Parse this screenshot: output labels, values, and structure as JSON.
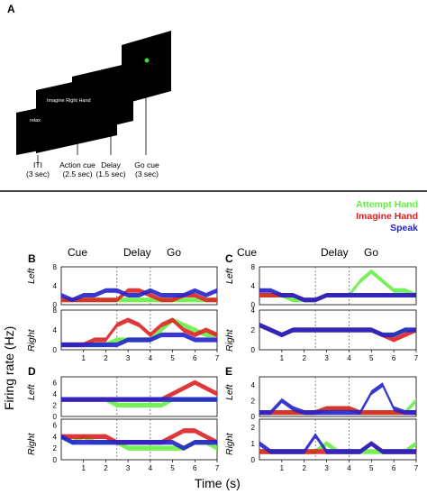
{
  "panel_a": {
    "letter": "A",
    "screen_texts": {
      "relax": "relax",
      "action": "Imagine Right Hand"
    },
    "captions": [
      {
        "line1": "ITI",
        "line2": "(3 sec)"
      },
      {
        "line1": "Action cue",
        "line2": "(2.5 sec)"
      },
      {
        "line1": "Delay",
        "line2": "(1.5 sec)"
      },
      {
        "line1": "Go cue",
        "line2": "(3 sec)"
      }
    ],
    "cue_color": "#33dd33"
  },
  "legend": [
    {
      "label": "Attempt Hand",
      "color": "#66ee44"
    },
    {
      "label": "Imagine Hand",
      "color": "#dd2222"
    },
    {
      "label": "Speak",
      "color": "#2222cc"
    }
  ],
  "phases": {
    "cue": "Cue",
    "delay": "Delay",
    "go": "Go"
  },
  "row_labels": {
    "left": "Left",
    "right": "Right"
  },
  "axis": {
    "ylabel": "Firing rate (Hz)",
    "xlabel": "Time (s)",
    "x_ticks": [
      "1",
      "2",
      "3",
      "4",
      "5",
      "6",
      "7"
    ]
  },
  "panels": [
    {
      "letter": "B",
      "left_ticks": [
        "0",
        "4",
        "8"
      ],
      "right_ticks": [
        "0",
        "4",
        "8"
      ]
    },
    {
      "letter": "C",
      "left_ticks": [
        "0",
        "4",
        "8"
      ],
      "right_ticks": [
        "0",
        "2",
        "4"
      ]
    },
    {
      "letter": "D",
      "left_ticks": [
        "0",
        "2",
        "4",
        "6"
      ],
      "right_ticks": [
        "0",
        "2",
        "4",
        "6"
      ]
    },
    {
      "letter": "E",
      "left_ticks": [
        "0",
        "2",
        "4"
      ],
      "right_ticks": [
        "0",
        "1",
        "2"
      ]
    }
  ],
  "chart_data": [
    {
      "type": "area",
      "panel": "B",
      "row": "Left",
      "x": [
        0,
        0.5,
        1,
        1.5,
        2,
        2.5,
        3,
        3.5,
        4,
        4.5,
        5,
        5.5,
        6,
        6.5,
        7
      ],
      "ylim": [
        0,
        8
      ],
      "series": [
        {
          "name": "Attempt Hand",
          "values": [
            1,
            1,
            1,
            1,
            1,
            1,
            1,
            1,
            1,
            1,
            1,
            1,
            1,
            1,
            1
          ]
        },
        {
          "name": "Imagine Hand",
          "values": [
            1,
            1,
            1,
            1,
            1,
            1,
            3,
            3,
            2,
            1,
            1,
            2,
            2,
            1,
            1
          ]
        },
        {
          "name": "Speak",
          "values": [
            2,
            1,
            2,
            2,
            3,
            3,
            2,
            2,
            3,
            2,
            2,
            2,
            3,
            2,
            3
          ]
        }
      ]
    },
    {
      "type": "area",
      "panel": "B",
      "row": "Right",
      "x": [
        0,
        0.5,
        1,
        1.5,
        2,
        2.5,
        3,
        3.5,
        4,
        4.5,
        5,
        5.5,
        6,
        6.5,
        7
      ],
      "ylim": [
        0,
        8
      ],
      "series": [
        {
          "name": "Attempt Hand",
          "values": [
            1,
            1,
            1,
            1,
            1,
            2,
            2,
            2,
            2,
            4,
            6,
            5,
            4,
            3,
            3
          ]
        },
        {
          "name": "Imagine Hand",
          "values": [
            1,
            1,
            1,
            2,
            2,
            5,
            6,
            5,
            3,
            5,
            6,
            4,
            3,
            4,
            3
          ]
        },
        {
          "name": "Speak",
          "values": [
            1,
            1,
            1,
            1,
            1,
            1,
            2,
            2,
            2,
            3,
            3,
            3,
            2,
            2,
            2
          ]
        }
      ]
    },
    {
      "type": "area",
      "panel": "C",
      "row": "Left",
      "x": [
        0,
        0.5,
        1,
        1.5,
        2,
        2.5,
        3,
        3.5,
        4,
        4.5,
        5,
        5.5,
        6,
        6.5,
        7
      ],
      "ylim": [
        0,
        8
      ],
      "series": [
        {
          "name": "Attempt Hand",
          "values": [
            2,
            2,
            2,
            1,
            1,
            1,
            2,
            2,
            2,
            5,
            7,
            5,
            3,
            3,
            2
          ]
        },
        {
          "name": "Imagine Hand",
          "values": [
            2,
            2,
            2,
            2,
            1,
            1,
            2,
            2,
            2,
            2,
            2,
            2,
            2,
            2,
            2
          ]
        },
        {
          "name": "Speak",
          "values": [
            3,
            3,
            2,
            2,
            1,
            1,
            2,
            2,
            2,
            2,
            2,
            2,
            2,
            2,
            2
          ]
        }
      ]
    },
    {
      "type": "area",
      "panel": "C",
      "row": "Right",
      "x": [
        0,
        0.5,
        1,
        1.5,
        2,
        2.5,
        3,
        3.5,
        4,
        4.5,
        5,
        5.5,
        6,
        6.5,
        7
      ],
      "ylim": [
        0,
        4
      ],
      "series": [
        {
          "name": "Attempt Hand",
          "values": [
            2.5,
            2,
            1.5,
            2,
            2,
            2,
            2,
            2,
            2,
            2,
            2,
            1.5,
            1.5,
            2,
            2
          ]
        },
        {
          "name": "Imagine Hand",
          "values": [
            2.5,
            2,
            1.5,
            2,
            2,
            2,
            2,
            2,
            2,
            2,
            2,
            1.5,
            1,
            1.5,
            2
          ]
        },
        {
          "name": "Speak",
          "values": [
            2.5,
            2,
            1.5,
            2,
            2,
            2,
            2,
            2,
            2,
            2,
            2,
            1.5,
            1.5,
            2,
            2
          ]
        }
      ]
    },
    {
      "type": "area",
      "panel": "D",
      "row": "Left",
      "x": [
        0,
        0.5,
        1,
        1.5,
        2,
        2.5,
        3,
        3.5,
        4,
        4.5,
        5,
        5.5,
        6,
        6.5,
        7
      ],
      "ylim": [
        0,
        7
      ],
      "series": [
        {
          "name": "Attempt Hand",
          "values": [
            3,
            3,
            3,
            3,
            3,
            2,
            2,
            2,
            2,
            2,
            3,
            3,
            3,
            3,
            3
          ]
        },
        {
          "name": "Imagine Hand",
          "values": [
            3,
            3,
            3,
            3,
            3,
            3,
            3,
            3,
            3,
            3,
            4,
            5,
            6,
            5,
            4
          ]
        },
        {
          "name": "Speak",
          "values": [
            3,
            3,
            3,
            3,
            3,
            3,
            3,
            3,
            3,
            3,
            3,
            3,
            3,
            3,
            3
          ]
        }
      ]
    },
    {
      "type": "area",
      "panel": "D",
      "row": "Right",
      "x": [
        0,
        0.5,
        1,
        1.5,
        2,
        2.5,
        3,
        3.5,
        4,
        4.5,
        5,
        5.5,
        6,
        6.5,
        7
      ],
      "ylim": [
        0,
        7
      ],
      "series": [
        {
          "name": "Attempt Hand",
          "values": [
            4,
            3,
            4,
            3,
            3,
            3,
            2,
            2,
            2,
            2,
            2,
            2,
            3,
            3,
            2
          ]
        },
        {
          "name": "Imagine Hand",
          "values": [
            4,
            4,
            4,
            4,
            4,
            3,
            3,
            3,
            3,
            3,
            4,
            5,
            5,
            4,
            3
          ]
        },
        {
          "name": "Speak",
          "values": [
            4,
            3,
            3,
            3,
            3,
            3,
            3,
            3,
            3,
            3,
            3,
            2,
            3,
            3,
            3
          ]
        }
      ]
    },
    {
      "type": "area",
      "panel": "E",
      "row": "Left",
      "x": [
        0,
        0.5,
        1,
        1.5,
        2,
        2.5,
        3,
        3.5,
        4,
        4.5,
        5,
        5.5,
        6,
        6.5,
        7
      ],
      "ylim": [
        0,
        5
      ],
      "series": [
        {
          "name": "Attempt Hand",
          "values": [
            0.5,
            0.5,
            0.5,
            0.5,
            0.5,
            0.5,
            1,
            1,
            1,
            0.5,
            0.5,
            0.5,
            0.5,
            0.5,
            2
          ]
        },
        {
          "name": "Imagine Hand",
          "values": [
            0.5,
            0.5,
            0.5,
            0.5,
            0.5,
            0.5,
            1,
            1,
            1,
            0.5,
            0.5,
            0.5,
            0.5,
            0.5,
            0.5
          ]
        },
        {
          "name": "Speak",
          "values": [
            0.5,
            0.5,
            2,
            1,
            0.5,
            0.5,
            0.5,
            0.5,
            0.5,
            0.5,
            3,
            4,
            1,
            0.5,
            0.5
          ]
        }
      ]
    },
    {
      "type": "area",
      "panel": "E",
      "row": "Right",
      "x": [
        0,
        0.5,
        1,
        1.5,
        2,
        2.5,
        3,
        3.5,
        4,
        4.5,
        5,
        5.5,
        6,
        6.5,
        7
      ],
      "ylim": [
        0,
        2.5
      ],
      "series": [
        {
          "name": "Attempt Hand",
          "values": [
            0.5,
            0.5,
            0.5,
            0.5,
            0.5,
            0.5,
            1,
            0.5,
            0.5,
            0.5,
            0.5,
            0.5,
            0.5,
            0.5,
            1
          ]
        },
        {
          "name": "Imagine Hand",
          "values": [
            0.5,
            0.5,
            0.5,
            0.5,
            0.5,
            0.5,
            0.5,
            0.5,
            0.5,
            0.5,
            1,
            0.5,
            0.5,
            0.5,
            0.5
          ]
        },
        {
          "name": "Speak",
          "values": [
            1,
            0.5,
            0.5,
            0.5,
            0.5,
            1.5,
            0.5,
            0.5,
            0.5,
            0.5,
            1,
            0.5,
            0.5,
            0.5,
            0.5
          ]
        }
      ]
    }
  ]
}
